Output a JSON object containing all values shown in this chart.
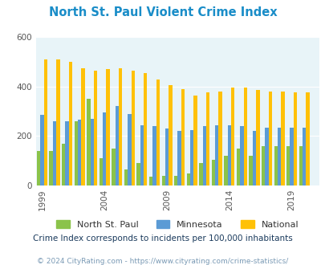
{
  "title": "North St. Paul Violent Crime Index",
  "years": [
    1999,
    2000,
    2001,
    2002,
    2003,
    2004,
    2005,
    2006,
    2007,
    2008,
    2009,
    2010,
    2011,
    2012,
    2013,
    2014,
    2015,
    2016,
    2017,
    2018,
    2019,
    2020
  ],
  "north_st_paul": [
    140,
    140,
    170,
    260,
    350,
    110,
    150,
    65,
    90,
    35,
    40,
    40,
    50,
    90,
    105,
    120,
    150,
    120,
    160,
    160,
    160,
    160
  ],
  "minnesota": [
    285,
    260,
    260,
    265,
    270,
    295,
    320,
    290,
    245,
    240,
    230,
    220,
    225,
    240,
    245,
    245,
    240,
    220,
    235,
    235,
    235,
    235
  ],
  "national": [
    510,
    510,
    500,
    475,
    465,
    470,
    475,
    465,
    455,
    430,
    405,
    390,
    365,
    375,
    380,
    395,
    395,
    385,
    380,
    380,
    375,
    375
  ],
  "north_st_paul_color": "#8bc34a",
  "minnesota_color": "#5b9bd5",
  "national_color": "#ffc107",
  "plot_bg_color": "#e8f4f8",
  "title_color": "#1a8dc8",
  "ylim": [
    0,
    600
  ],
  "yticks": [
    0,
    200,
    400,
    600
  ],
  "subtitle": "Crime Index corresponds to incidents per 100,000 inhabitants",
  "footer": "© 2024 CityRating.com - https://www.cityrating.com/crime-statistics/",
  "subtitle_color": "#1a3a5c",
  "footer_color": "#7a9ab5",
  "legend_text_color": "#333333",
  "xticks": [
    1999,
    2004,
    2009,
    2014,
    2019
  ],
  "bar_width": 0.28
}
